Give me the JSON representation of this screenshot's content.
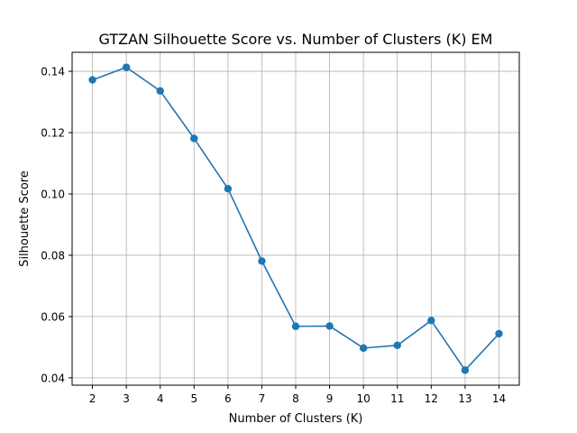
{
  "chart_data": {
    "type": "line",
    "title": "GTZAN Silhouette Score vs. Number of Clusters (K) EM",
    "xlabel": "Number of Clusters (K)",
    "ylabel": "Silhouette Score",
    "x": [
      2,
      3,
      4,
      5,
      6,
      7,
      8,
      9,
      10,
      11,
      12,
      13,
      14
    ],
    "series": [
      {
        "values": [
          0.1372,
          0.1413,
          0.1336,
          0.1181,
          0.1017,
          0.0781,
          0.0568,
          0.0569,
          0.0497,
          0.0506,
          0.0587,
          0.0425,
          0.0544
        ],
        "color": "#1f77b4",
        "marker": "circle"
      }
    ],
    "xticks": [
      "2",
      "3",
      "4",
      "5",
      "6",
      "7",
      "8",
      "9",
      "10",
      "11",
      "12",
      "13",
      "14"
    ],
    "yticks": [
      "0.04",
      "0.06",
      "0.08",
      "0.10",
      "0.12",
      "0.14"
    ],
    "ytick_values": [
      0.04,
      0.06,
      0.08,
      0.1,
      0.12,
      0.14
    ],
    "xlim": [
      1.4,
      14.6
    ],
    "ylim": [
      0.0376,
      0.1462
    ],
    "grid": true
  }
}
